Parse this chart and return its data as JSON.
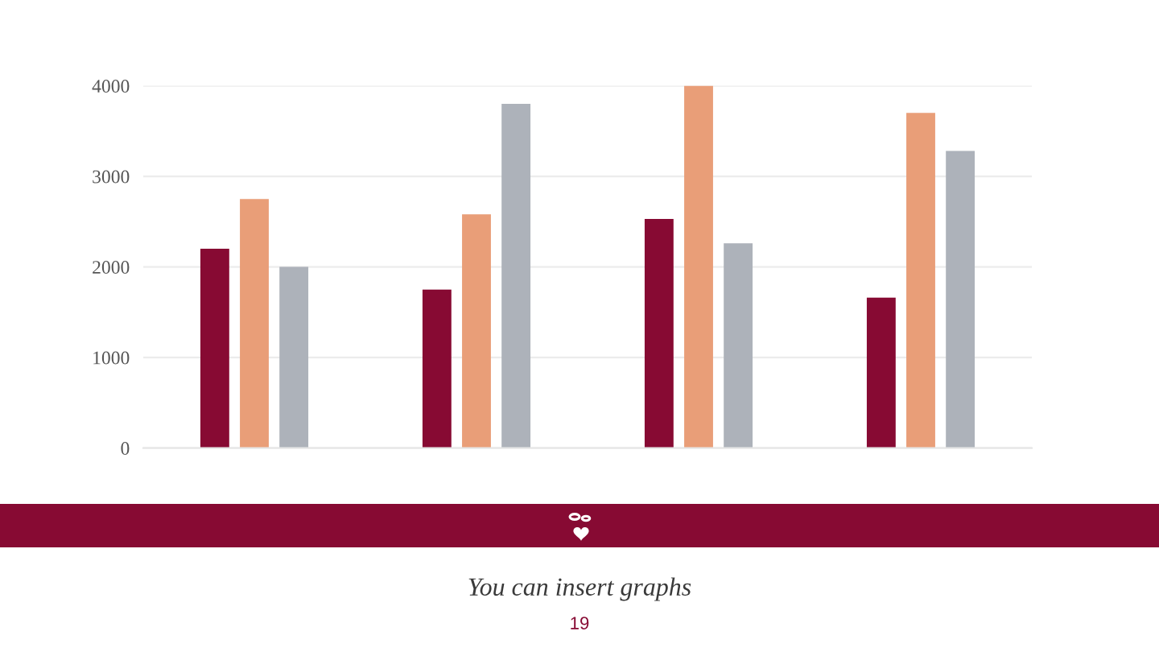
{
  "chart_data": {
    "type": "bar",
    "categories": [
      null,
      null,
      null,
      null
    ],
    "series": [
      {
        "color": "#870a33",
        "values": [
          2200,
          1750,
          2530,
          1660
        ]
      },
      {
        "color": "#e99e78",
        "values": [
          2750,
          2580,
          4000,
          3700
        ]
      },
      {
        "color": "#adb2ba",
        "values": [
          2000,
          3800,
          2260,
          3280
        ]
      }
    ],
    "ylim": [
      0,
      4000
    ],
    "yticks": [
      0,
      1000,
      2000,
      3000,
      4000
    ],
    "grid": "y",
    "tick_labels": "y",
    "annotations": [
      "You can insert graphs",
      "19"
    ]
  }
}
